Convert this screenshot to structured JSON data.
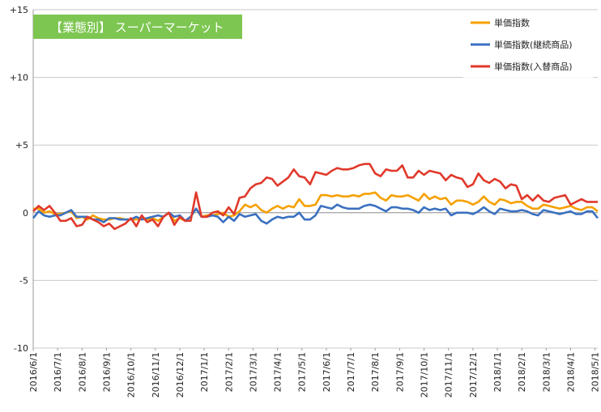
{
  "chart_data": {
    "type": "line",
    "title": "【業態別】 スーパーマーケット",
    "title_bg_color": "#7dc651",
    "ylim": [
      -10,
      15
    ],
    "yticks": [
      15,
      10,
      5,
      0,
      -5,
      -10
    ],
    "ytick_labels": [
      "+15",
      "+10",
      "+5",
      "0",
      "-5",
      "-10"
    ],
    "grid": "horizontal",
    "legend_position": "top-right",
    "x_labels": [
      "2016/6/1",
      "2016/7/1",
      "2016/8/1",
      "2016/9/1",
      "2016/10/1",
      "2016/11/1",
      "2016/12/1",
      "2017/1/1",
      "2017/2/1",
      "2017/3/1",
      "2017/4/1",
      "2017/5/1",
      "2017/6/1",
      "2017/7/1",
      "2017/8/1",
      "2017/9/1",
      "2017/10/1",
      "2017/11/1",
      "2017/12/1",
      "2018/1/1",
      "2018/2/1",
      "2018/3/1",
      "2018/4/1",
      "2018/5/1"
    ],
    "points_per_month": 4.5,
    "series": [
      {
        "name": "単価指数",
        "color": "#f5a000",
        "values": [
          0.3,
          0.3,
          0.0,
          0.1,
          -0.1,
          -0.1,
          0.0,
          0.1,
          -0.4,
          -0.3,
          -0.5,
          -0.2,
          -0.4,
          -0.5,
          -0.5,
          -0.4,
          -0.4,
          -0.5,
          -0.5,
          -0.5,
          -0.4,
          -0.5,
          -0.4,
          -0.6,
          -0.3,
          0.0,
          -0.6,
          -0.4,
          -0.6,
          -0.3,
          0.3,
          -0.3,
          -0.2,
          -0.2,
          -0.1,
          0.0,
          -0.3,
          -0.2,
          0.1,
          0.6,
          0.4,
          0.6,
          0.2,
          0.0,
          0.3,
          0.5,
          0.3,
          0.5,
          0.4,
          1.0,
          0.5,
          0.5,
          0.6,
          1.3,
          1.3,
          1.2,
          1.3,
          1.2,
          1.2,
          1.3,
          1.2,
          1.4,
          1.4,
          1.5,
          1.1,
          0.9,
          1.3,
          1.2,
          1.2,
          1.3,
          1.1,
          0.9,
          1.4,
          1.0,
          1.2,
          1.0,
          1.1,
          0.6,
          0.9,
          0.9,
          0.8,
          0.6,
          0.8,
          1.2,
          0.8,
          0.6,
          1.0,
          0.9,
          0.7,
          0.8,
          0.8,
          0.5,
          0.3,
          0.3,
          0.6,
          0.5,
          0.4,
          0.3,
          0.4,
          0.5,
          0.3,
          0.2,
          0.4,
          0.4,
          0.1
        ]
      },
      {
        "name": "単価指数(継続商品)",
        "color": "#3a70c0",
        "values": [
          -0.4,
          0.1,
          -0.2,
          -0.3,
          -0.2,
          -0.2,
          0.0,
          0.2,
          -0.3,
          -0.3,
          -0.3,
          -0.5,
          -0.5,
          -0.7,
          -0.4,
          -0.4,
          -0.5,
          -0.5,
          -0.5,
          -0.3,
          -0.5,
          -0.4,
          -0.3,
          -0.2,
          -0.3,
          0.0,
          -0.3,
          -0.2,
          -0.6,
          -0.3,
          0.3,
          -0.3,
          -0.3,
          -0.2,
          -0.3,
          -0.7,
          -0.3,
          -0.6,
          -0.1,
          -0.3,
          -0.2,
          -0.1,
          -0.6,
          -0.8,
          -0.5,
          -0.3,
          -0.4,
          -0.3,
          -0.3,
          0.0,
          -0.5,
          -0.5,
          -0.2,
          0.5,
          0.4,
          0.3,
          0.6,
          0.4,
          0.3,
          0.3,
          0.3,
          0.5,
          0.6,
          0.5,
          0.3,
          0.1,
          0.4,
          0.4,
          0.3,
          0.3,
          0.2,
          0.0,
          0.4,
          0.2,
          0.3,
          0.2,
          0.3,
          -0.2,
          0.0,
          0.0,
          0.0,
          -0.1,
          0.1,
          0.4,
          0.1,
          -0.1,
          0.3,
          0.2,
          0.1,
          0.1,
          0.2,
          0.1,
          -0.1,
          -0.2,
          0.2,
          0.1,
          0.0,
          -0.1,
          0.0,
          0.1,
          -0.1,
          -0.1,
          0.1,
          0.1,
          -0.4
        ]
      },
      {
        "name": "単価指数(入替商品)",
        "color": "#e0392b",
        "values": [
          0.1,
          0.5,
          0.2,
          0.5,
          0.0,
          -0.6,
          -0.6,
          -0.4,
          -1.0,
          -0.9,
          -0.3,
          -0.5,
          -0.7,
          -1.0,
          -0.8,
          -1.2,
          -1.0,
          -0.8,
          -0.4,
          -1.0,
          -0.2,
          -0.7,
          -0.5,
          -1.0,
          -0.3,
          0.0,
          -0.9,
          -0.3,
          -0.6,
          -0.6,
          1.5,
          -0.3,
          -0.3,
          0.0,
          0.1,
          -0.2,
          0.4,
          -0.1,
          1.1,
          1.2,
          1.8,
          2.1,
          2.2,
          2.6,
          2.5,
          2.0,
          2.3,
          2.6,
          3.2,
          2.7,
          2.6,
          2.1,
          3.0,
          2.9,
          2.8,
          3.1,
          3.3,
          3.2,
          3.2,
          3.3,
          3.5,
          3.6,
          3.6,
          2.9,
          2.7,
          3.2,
          3.1,
          3.1,
          3.5,
          2.6,
          2.6,
          3.1,
          2.8,
          3.1,
          3.0,
          2.9,
          2.4,
          2.8,
          2.6,
          2.5,
          1.9,
          2.1,
          2.9,
          2.4,
          2.2,
          2.5,
          2.3,
          1.8,
          2.1,
          2.0,
          1.0,
          1.3,
          0.9,
          1.3,
          0.9,
          0.8,
          1.1,
          1.2,
          1.3,
          0.6,
          0.8,
          1.0,
          0.8,
          0.8,
          0.8
        ]
      }
    ]
  }
}
